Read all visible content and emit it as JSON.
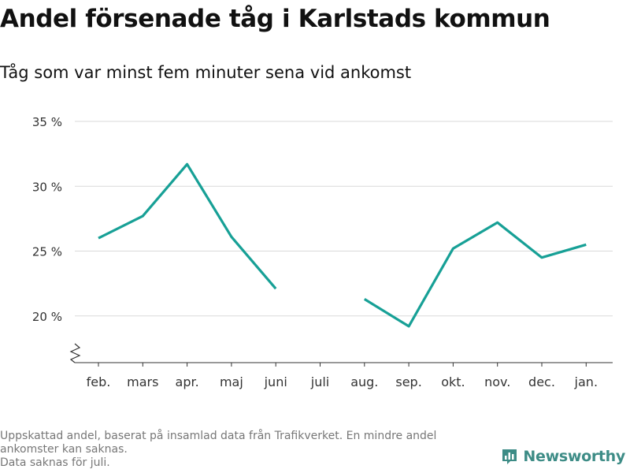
{
  "header": {
    "title": "Andel försenade tåg i Karlstads kommun",
    "subtitle": "Tåg som var minst fem minuter sena vid ankomst"
  },
  "chart_data": {
    "type": "line",
    "title": "Andel försenade tåg i Karlstads kommun",
    "subtitle": "Tåg som var minst fem minuter sena vid ankomst",
    "xlabel": "",
    "ylabel": "",
    "categories": [
      "feb.",
      "mars",
      "apr.",
      "maj",
      "juni",
      "juli",
      "aug.",
      "sep.",
      "okt.",
      "nov.",
      "dec.",
      "jan."
    ],
    "series": [
      {
        "values": [
          26.0,
          27.7,
          31.7,
          26.1,
          22.1,
          null,
          21.3,
          19.2,
          25.2,
          27.2,
          24.5,
          25.5
        ]
      }
    ],
    "y_ticks": [
      20,
      25,
      30,
      35
    ],
    "y_tick_labels": [
      "20 %",
      "25 %",
      "30 %",
      "35 %"
    ],
    "ylim": [
      16.4,
      35
    ],
    "y_axis_break": true,
    "grid": "horizontal",
    "legend": "none",
    "colors": {
      "line": "#17a096",
      "grid": "#d9d9d9",
      "axis": "#333333",
      "tick_text": "#333333"
    }
  },
  "footer": {
    "notes": [
      "Uppskattad andel, baserat på insamlad data från Trafikverket. En mindre andel ankomster kan saknas.",
      "Data saknas för juli."
    ],
    "brand": "Newsworthy",
    "brand_color": "#3d8c86",
    "brand_icon": "bar-chart-speech-bubble-icon"
  }
}
